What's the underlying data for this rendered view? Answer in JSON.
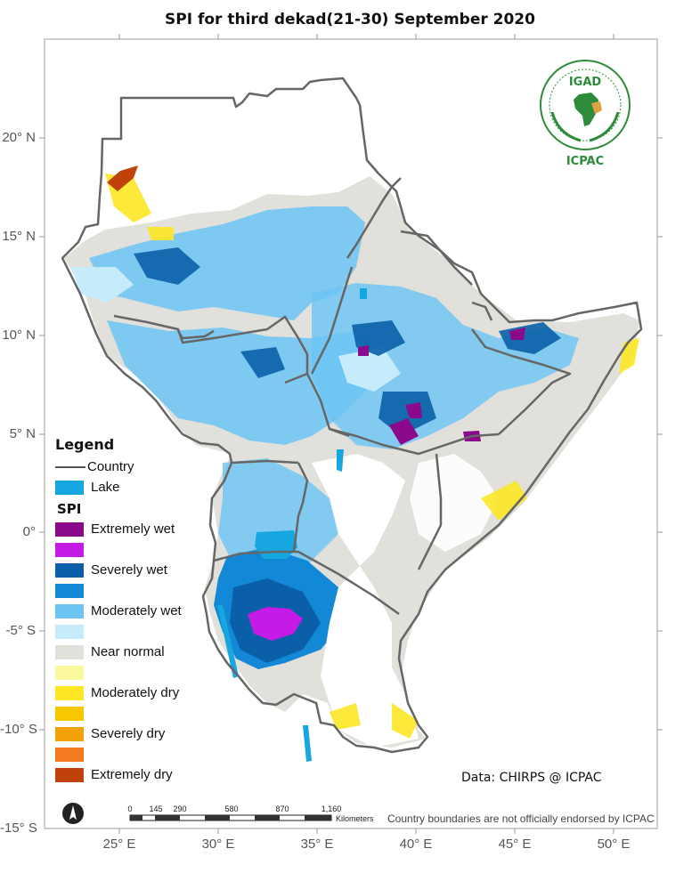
{
  "title": "SPI  for   third dekad(21-30) September 2020",
  "axes": {
    "lat_labels": [
      "20° N",
      "15° N",
      "10° N",
      "5° N",
      "0°",
      "-5° S",
      "-10° S",
      "-15° S"
    ],
    "lon_labels": [
      "25° E",
      "30° E",
      "35° E",
      "40° E",
      "45° E",
      "50° E"
    ]
  },
  "legend": {
    "title": "Legend",
    "country_label": "Country",
    "lake_label": "Lake",
    "spi_title": "SPI",
    "classes": [
      {
        "label": "Extremely wet",
        "color": "#8b0a8b"
      },
      {
        "label": "",
        "color": "#c51be6"
      },
      {
        "label": "Severely wet",
        "color": "#0a5fa8"
      },
      {
        "label": "",
        "color": "#1388d6"
      },
      {
        "label": "Moderately wet",
        "color": "#6cc4f5"
      },
      {
        "label": "",
        "color": "#c6ecfb"
      },
      {
        "label": "Near normal",
        "color": "#e2e0da"
      },
      {
        "label": "",
        "color": "#fbf9a0"
      },
      {
        "label": "Moderately dry",
        "color": "#fde725"
      },
      {
        "label": "",
        "color": "#f7c800"
      },
      {
        "label": "Severely dry",
        "color": "#f5a20a"
      },
      {
        "label": "",
        "color": "#f47b20"
      },
      {
        "label": "Extremely dry",
        "color": "#c0420a"
      }
    ],
    "lake_color": "#17a7e0",
    "country_line_color": "#666666"
  },
  "logo": {
    "acronym": "IGAD",
    "caption": "ICPAC"
  },
  "credit": "Data: CHIRPS @ ICPAC",
  "disclaimer": "Country boundaries are not officially endorsed by ICPAC",
  "scale_bar": {
    "ticks": [
      "0",
      "145",
      "290",
      "580",
      "870",
      "1,160"
    ],
    "units": "Kilometers"
  }
}
